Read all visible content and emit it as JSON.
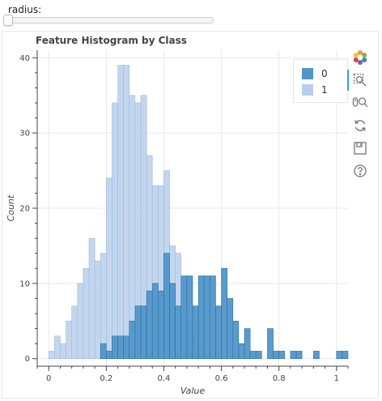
{
  "slider": {
    "label": "radius:",
    "value": 0
  },
  "plot": {
    "title": "Feature Histogram by Class"
  },
  "colors": {
    "class0": "#5096c9",
    "class0_edge": "#2f6f9f",
    "class1": "#b8cfeb",
    "class1_edge": "#9fbbe0",
    "grid": "#e9e9e9",
    "axis": "#444444"
  },
  "legend": {
    "items": [
      {
        "label": "0",
        "color": "#5096c9"
      },
      {
        "label": "1",
        "color": "#b8cfeb"
      }
    ]
  },
  "toolbar": {
    "tools": [
      {
        "name": "bokeh-logo-icon"
      },
      {
        "name": "box-zoom-icon"
      },
      {
        "name": "wheel-zoom-icon"
      },
      {
        "name": "reset-icon"
      },
      {
        "name": "save-icon"
      },
      {
        "name": "help-icon"
      }
    ]
  },
  "chart_data": {
    "type": "bar",
    "title": "Feature Histogram by Class",
    "xlabel": "Value",
    "ylabel": "Count",
    "xlim": [
      -0.04,
      1.04
    ],
    "ylim": [
      -1,
      41
    ],
    "xticks": [
      0,
      0.2,
      0.4,
      0.6,
      0.8,
      1
    ],
    "xtick_labels": [
      "0",
      "0.2",
      "0.4",
      "0.6",
      "0.8",
      "1"
    ],
    "yticks": [
      0,
      10,
      20,
      30,
      40
    ],
    "ytick_labels": [
      "0",
      "10",
      "20",
      "30",
      "40"
    ],
    "grid": true,
    "legend_position": "top-right",
    "series": [
      {
        "name": "1",
        "bin_width": 0.02,
        "bin_start": 0.0,
        "values": [
          1,
          3,
          2,
          5,
          7,
          10,
          12,
          16,
          13,
          14,
          24,
          34,
          39,
          39,
          35,
          34,
          35,
          27,
          23,
          23,
          25,
          15,
          14,
          10,
          5,
          3,
          2
        ]
      },
      {
        "name": "0",
        "bin_width": 0.02,
        "bin_start": 0.18,
        "values": [
          2,
          1,
          3,
          3,
          3,
          5,
          7,
          7,
          9,
          10,
          9,
          14,
          10,
          7,
          11,
          11,
          7,
          11,
          11,
          11,
          7,
          12,
          8,
          5,
          2,
          4,
          1,
          1,
          0,
          4,
          1,
          1,
          0,
          1,
          1,
          0,
          0,
          1,
          0,
          0,
          0,
          1,
          1
        ]
      }
    ]
  }
}
